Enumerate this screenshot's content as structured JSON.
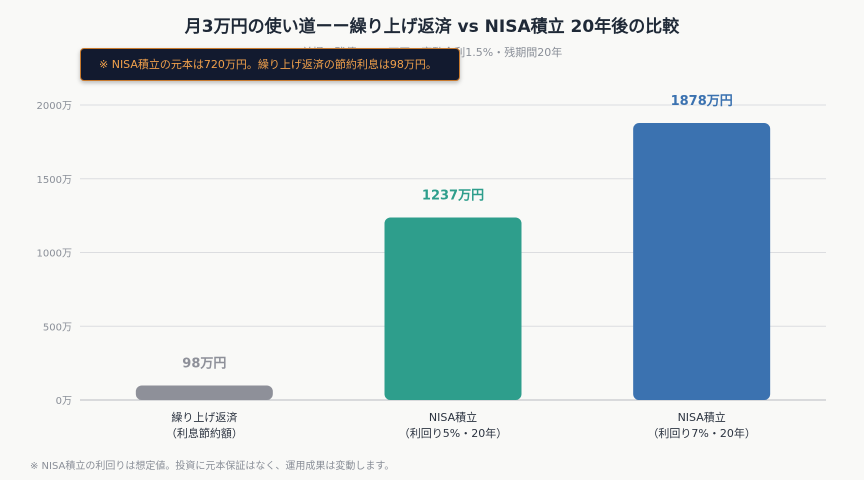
{
  "header": {
    "title": "月3万円の使い道ーー繰り上げ返済 vs NISA積立 20年後の比較",
    "subtitle": "前提：残債3,000万円・変動金利1.5%・残期間20年"
  },
  "tooltip": {
    "text": "※ NISA積立の元本は720万円。繰り上げ返済の節約利息は98万円。"
  },
  "footnote": "※ NISA積立の利回りは想定値。投資に元本保証はなく、運用成果は変動します。",
  "chart_data": {
    "type": "bar",
    "categories": [
      [
        "繰り上げ返済",
        "（利息節約額）"
      ],
      [
        "NISA積立",
        "（利回り5%・20年）"
      ],
      [
        "NISA積立",
        "（利回り7%・20年）"
      ]
    ],
    "values": [
      98,
      1237,
      1878
    ],
    "data_labels": [
      "98万円",
      "1237万円",
      "1878万円"
    ],
    "colors": [
      "#8e9099",
      "#2e9e8c",
      "#3b72b0"
    ],
    "yticks": [
      0,
      500,
      1000,
      1500,
      2000
    ],
    "ytick_labels": [
      "0万",
      "500万",
      "1000万",
      "1500万",
      "2000万"
    ],
    "ylim": [
      0,
      2000
    ],
    "grid": true,
    "legend": "none"
  }
}
